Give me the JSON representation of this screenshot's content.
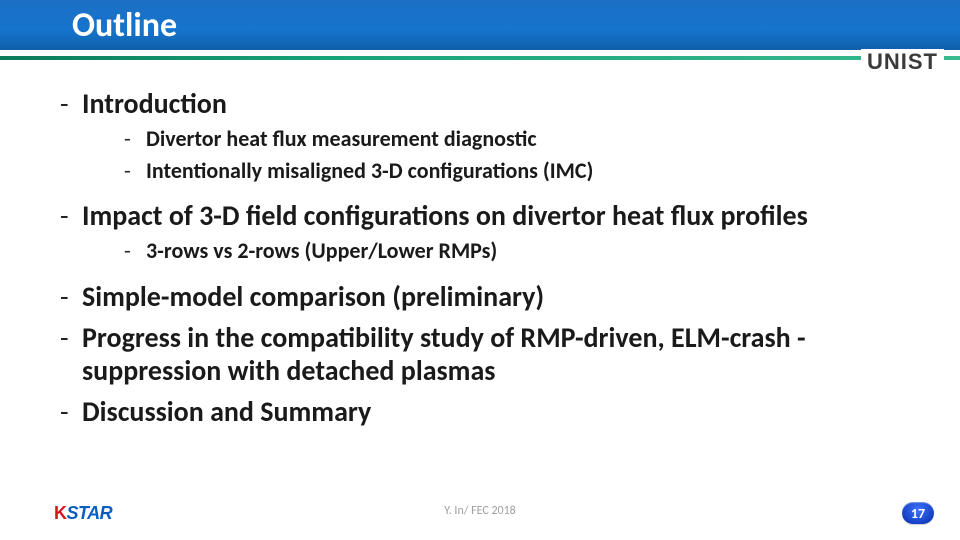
{
  "title": "Outline",
  "logo_right": "UNIST",
  "outline": {
    "l1_1": "Introduction",
    "l1_1_sub1": "Divertor heat flux measurement diagnostic",
    "l1_1_sub2": "Intentionally misaligned 3-D configurations (IMC)",
    "l1_2": "Impact of 3-D field configurations on divertor heat flux profiles",
    "l1_2_sub1": "3-rows vs 2-rows (Upper/Lower RMPs)",
    "l1_3": "Simple-model comparison (preliminary)",
    "l1_4": "Progress in the compatibility study of RMP-driven, ELM-crash -suppression with detached plasmas",
    "l1_5": "Discussion and Summary"
  },
  "footer": {
    "center": "Y. In/ FEC 2018",
    "page": "17",
    "logo_k": "K",
    "logo_star": "STAR"
  },
  "bullet": "-"
}
